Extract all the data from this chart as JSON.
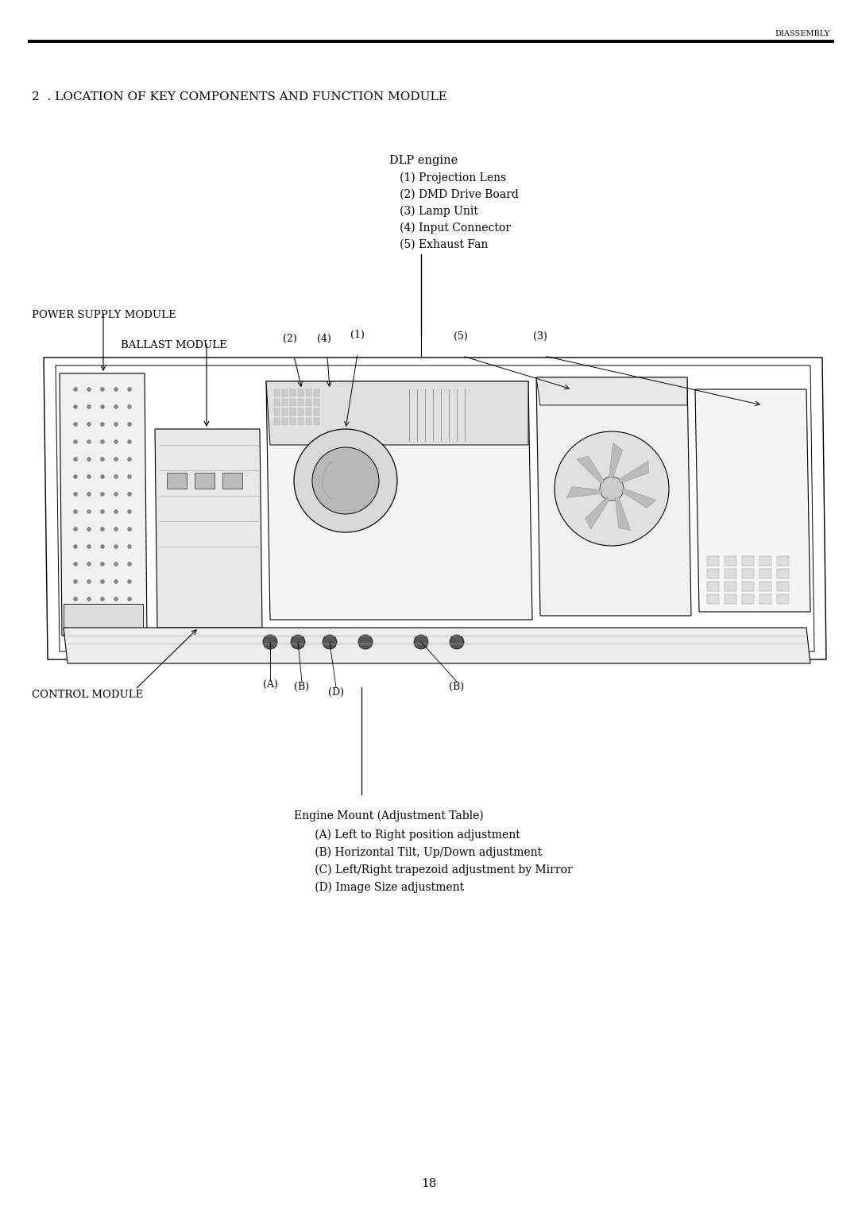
{
  "page_title": "DIASSEMBLY",
  "section_title": "2  . LOCATION OF KEY COMPONENTS AND FUNCTION MODULE",
  "bg_color": "#ffffff",
  "text_color": "#000000",
  "page_number": "18",
  "dlp_label": "DLP engine",
  "dlp_items": [
    "   (1) Projection Lens",
    "   (2) DMD Drive Board",
    "   (3) Lamp Unit",
    "   (4) Input Connector",
    "   (5) Exhaust Fan"
  ],
  "power_supply_label": "POWER SUPPLY MODULE",
  "ballast_label": "BALLAST MODULE",
  "control_label": "CONTROL MODULE",
  "engine_mount_label": "Engine Mount (Adjustment Table)",
  "engine_mount_items": [
    "      (A) Left to Right position adjustment",
    "      (B) Horizontal Tilt, Up/Down adjustment",
    "      (C) Left/Right trapezoid adjustment by Mirror",
    "      (D) Image Size adjustment"
  ]
}
